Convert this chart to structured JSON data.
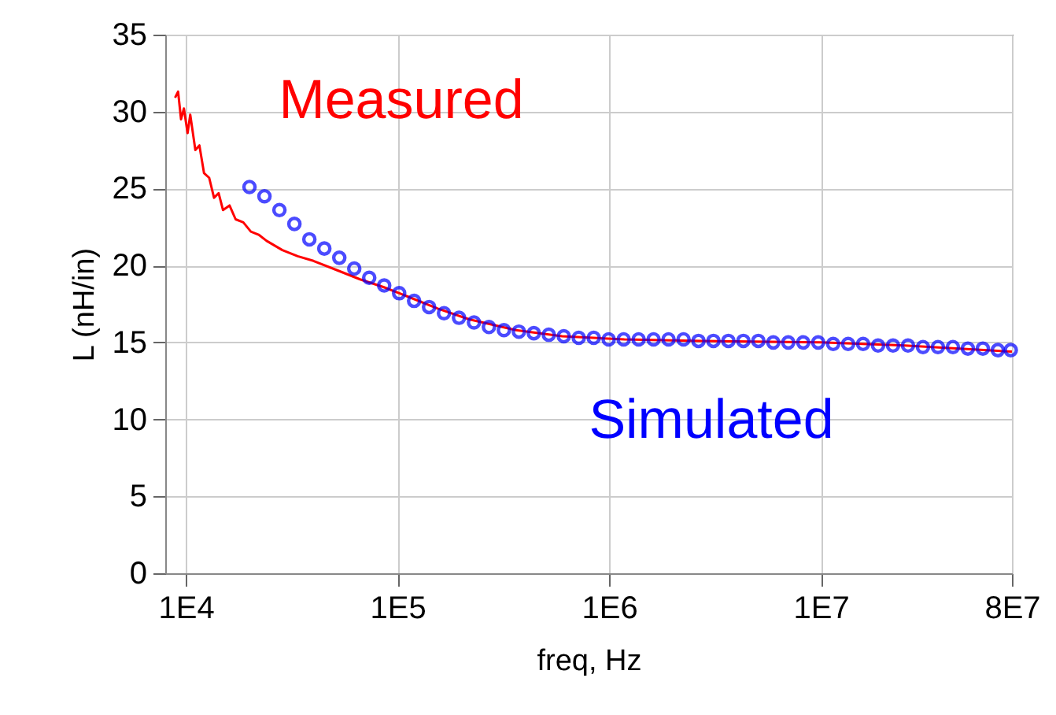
{
  "chart_data": {
    "type": "line",
    "xlabel": "freq, Hz",
    "ylabel": "L (nH/in)",
    "log": "x",
    "grid": true,
    "xlim": [
      8000,
      80000000
    ],
    "ylim": [
      0,
      35
    ],
    "xticks": [
      {
        "value": 10000,
        "label": "1E4"
      },
      {
        "value": 100000,
        "label": "1E5"
      },
      {
        "value": 1000000,
        "label": "1E6"
      },
      {
        "value": 10000000,
        "label": "1E7"
      },
      {
        "value": 80000000,
        "label": "8E7"
      }
    ],
    "yticks": [
      0,
      5,
      10,
      15,
      20,
      25,
      30,
      35
    ],
    "series": [
      {
        "name": "Measured",
        "color": "#ff0000",
        "x": [
          8900,
          9200,
          9500,
          9800,
          10200,
          10500,
          11100,
          11600,
          12200,
          12900,
          13600,
          14300,
          15000,
          16100,
          17200,
          18700,
          20300,
          22100,
          24100,
          28600,
          33800,
          40100,
          51700,
          66600,
          85800,
          111000,
          155000,
          218000,
          363000,
          600000,
          1180000,
          2730000,
          10000000,
          24900000,
          80000000
        ],
        "values": [
          30.9,
          31.3,
          29.5,
          30.2,
          28.6,
          29.8,
          27.5,
          27.8,
          26.0,
          25.7,
          24.4,
          24.7,
          23.6,
          23.9,
          23.0,
          22.8,
          22.2,
          22.0,
          21.6,
          21.0,
          20.6,
          20.3,
          19.7,
          19.1,
          18.6,
          18.0,
          17.2,
          16.5,
          15.8,
          15.4,
          15.2,
          15.1,
          15.0,
          14.8,
          14.4
        ]
      },
      {
        "name": "Simulated",
        "type": "scatter",
        "marker": "circle",
        "color": "#0000ff",
        "x": [
          20000,
          23540,
          27700,
          32600,
          38360,
          45140,
          53130,
          62520,
          73570,
          86580,
          101890,
          119900,
          141100,
          166000,
          195400,
          230000,
          270600,
          318500,
          374800,
          441000,
          519000,
          610800,
          718800,
          845900,
          995500,
          1171500,
          1379000,
          1622000,
          1909000,
          2247000,
          2644000,
          3111000,
          3661000,
          4309000,
          5071000,
          5967000,
          7022000,
          8264000,
          9725000,
          11445000,
          13470000,
          15850000,
          18650000,
          21950000,
          25830000,
          30400000,
          35770000,
          42100000,
          49540000,
          58300000,
          68610000,
          79000000
        ],
        "values": [
          25.1,
          24.5,
          23.6,
          22.7,
          21.7,
          21.1,
          20.5,
          19.8,
          19.2,
          18.7,
          18.2,
          17.7,
          17.3,
          16.9,
          16.6,
          16.3,
          16.0,
          15.8,
          15.7,
          15.6,
          15.5,
          15.4,
          15.3,
          15.3,
          15.2,
          15.2,
          15.2,
          15.2,
          15.2,
          15.2,
          15.1,
          15.1,
          15.1,
          15.1,
          15.1,
          15.0,
          15.0,
          15.0,
          15.0,
          14.9,
          14.9,
          14.9,
          14.8,
          14.8,
          14.8,
          14.7,
          14.7,
          14.7,
          14.6,
          14.6,
          14.5,
          14.5
        ]
      }
    ]
  }
}
